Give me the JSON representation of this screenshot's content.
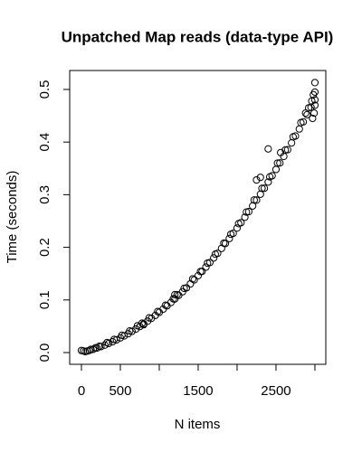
{
  "chart_data": {
    "type": "scatter",
    "title": "Unpatched Map reads (data-type API)",
    "x_label": "N items",
    "y_label": "Time (seconds)",
    "xlim": [
      -151,
      3140
    ],
    "ylim": [
      -0.0223,
      0.536
    ],
    "xticks": [
      0,
      500,
      {
        "value": 1000,
        "label": null
      },
      1500,
      {
        "value": 2000,
        "label": null
      },
      2500,
      {
        "value": 3000,
        "label": null
      }
    ],
    "yticks": [
      {
        "value": 0,
        "label": "0.0"
      },
      0.1,
      0.2,
      0.3,
      0.4,
      0.5
    ],
    "color": "#000000",
    "x": [
      0,
      25,
      50,
      75,
      100,
      150,
      200,
      250,
      300,
      350,
      400,
      450,
      500,
      550,
      600,
      650,
      700,
      750,
      800,
      850,
      900,
      950,
      1000,
      1050,
      1100,
      1150,
      1200,
      1250,
      1300,
      1350,
      1400,
      1450,
      1500,
      1550,
      1600,
      1650,
      1700,
      1750,
      1800,
      1850,
      1900,
      1950,
      2000,
      2050,
      2100,
      2150,
      2200,
      2250,
      2300,
      2350,
      2400,
      2450,
      2500,
      2550,
      2600,
      2650,
      2700,
      2750,
      2800,
      2850,
      2900,
      2950,
      3000,
      120,
      180,
      230,
      330,
      420,
      520,
      620,
      720,
      780,
      870,
      980,
      1080,
      1180,
      1230,
      1320,
      1430,
      1530,
      1620,
      1720,
      1830,
      1920,
      2020,
      2120,
      2220,
      2320,
      2420,
      2520,
      2620,
      2720,
      2820,
      2880,
      2920,
      2960,
      2980,
      3000,
      3000,
      2990,
      2970,
      3000,
      2400,
      2250,
      2300,
      1200,
      800,
      2560
    ],
    "values": [
      0.004,
      0.003,
      0.0018,
      0.0028,
      0.0039,
      0.0061,
      0.0086,
      0.0113,
      0.0142,
      0.0172,
      0.0206,
      0.0241,
      0.028,
      0.0317,
      0.0358,
      0.0403,
      0.0448,
      0.0495,
      0.0546,
      0.0597,
      0.0651,
      0.0707,
      0.0765,
      0.0825,
      0.0888,
      0.0952,
      0.1018,
      0.1087,
      0.1157,
      0.123,
      0.1305,
      0.1382,
      0.1461,
      0.1542,
      0.1625,
      0.1711,
      0.1798,
      0.1887,
      0.1979,
      0.2073,
      0.2168,
      0.2266,
      0.2366,
      0.2468,
      0.2572,
      0.2678,
      0.2786,
      0.2897,
      0.3009,
      0.3123,
      0.3241,
      0.3359,
      0.348,
      0.3603,
      0.3728,
      0.3855,
      0.3984,
      0.4115,
      0.4249,
      0.4384,
      0.4521,
      0.4662,
      0.4803,
      0.006,
      0.009,
      0.012,
      0.019,
      0.025,
      0.033,
      0.041,
      0.051,
      0.056,
      0.066,
      0.078,
      0.09,
      0.102,
      0.11,
      0.122,
      0.14,
      0.154,
      0.17,
      0.187,
      0.208,
      0.225,
      0.245,
      0.267,
      0.29,
      0.312,
      0.334,
      0.36,
      0.385,
      0.41,
      0.437,
      0.455,
      0.465,
      0.478,
      0.49,
      0.47,
      0.495,
      0.455,
      0.445,
      0.513,
      0.387,
      0.328,
      0.333,
      0.11,
      0.053,
      0.38
    ]
  }
}
